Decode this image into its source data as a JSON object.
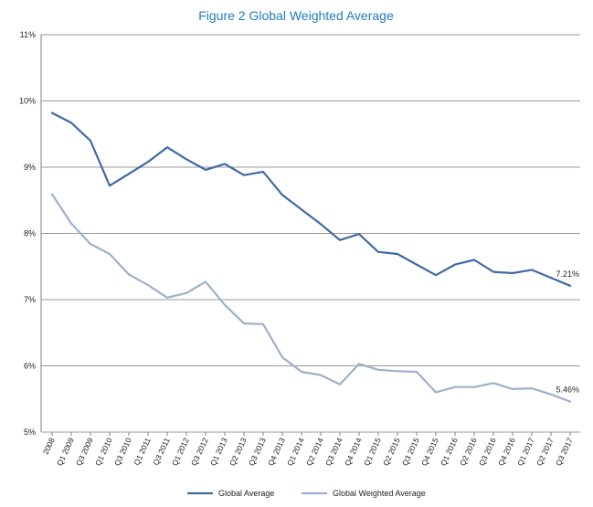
{
  "chart_data": {
    "type": "line",
    "title": "Figure 2 Global Weighted Average",
    "xlabel": "",
    "ylabel": "",
    "ylim": [
      5,
      11
    ],
    "y_ticks": [
      "5%",
      "6%",
      "7%",
      "8%",
      "9%",
      "10%",
      "11%"
    ],
    "grid": true,
    "legend_position": "bottom-center",
    "categories": [
      "2008",
      "Q1 2009",
      "Q3 2009",
      "Q1 2010",
      "Q3 2010",
      "Q1 2011",
      "Q3 2011",
      "Q1 2012",
      "Q3 2012",
      "Q1 2013",
      "Q2 2013",
      "Q3 2013",
      "Q4 2013",
      "Q1 2014",
      "Q2 2014",
      "Q3 2014",
      "Q4 2014",
      "Q1 2015",
      "Q2 2015",
      "Q3 2015",
      "Q4 2015",
      "Q1 2016",
      "Q2 2016",
      "Q3 2016",
      "Q4 2016",
      "Q1 2017",
      "Q2 2017",
      "Q3 2017"
    ],
    "series": [
      {
        "name": "Global Average",
        "color": "#3e6aa3",
        "values": [
          9.82,
          9.67,
          9.4,
          8.72,
          8.9,
          9.08,
          9.3,
          9.12,
          8.96,
          9.05,
          8.88,
          8.93,
          8.58,
          8.36,
          8.14,
          7.9,
          7.99,
          7.72,
          7.69,
          7.53,
          7.37,
          7.53,
          7.6,
          7.42,
          7.4,
          7.45,
          7.33,
          7.21
        ],
        "end_label": "7.21%"
      },
      {
        "name": "Global Weighted Average",
        "color": "#9bb1cb",
        "values": [
          8.59,
          8.15,
          7.84,
          7.69,
          7.38,
          7.22,
          7.03,
          7.1,
          7.27,
          6.92,
          6.64,
          6.63,
          6.13,
          5.91,
          5.86,
          5.72,
          6.03,
          5.94,
          5.92,
          5.91,
          5.6,
          5.68,
          5.68,
          5.74,
          5.65,
          5.66,
          5.57,
          5.46
        ],
        "end_label": "5.46%"
      }
    ]
  }
}
